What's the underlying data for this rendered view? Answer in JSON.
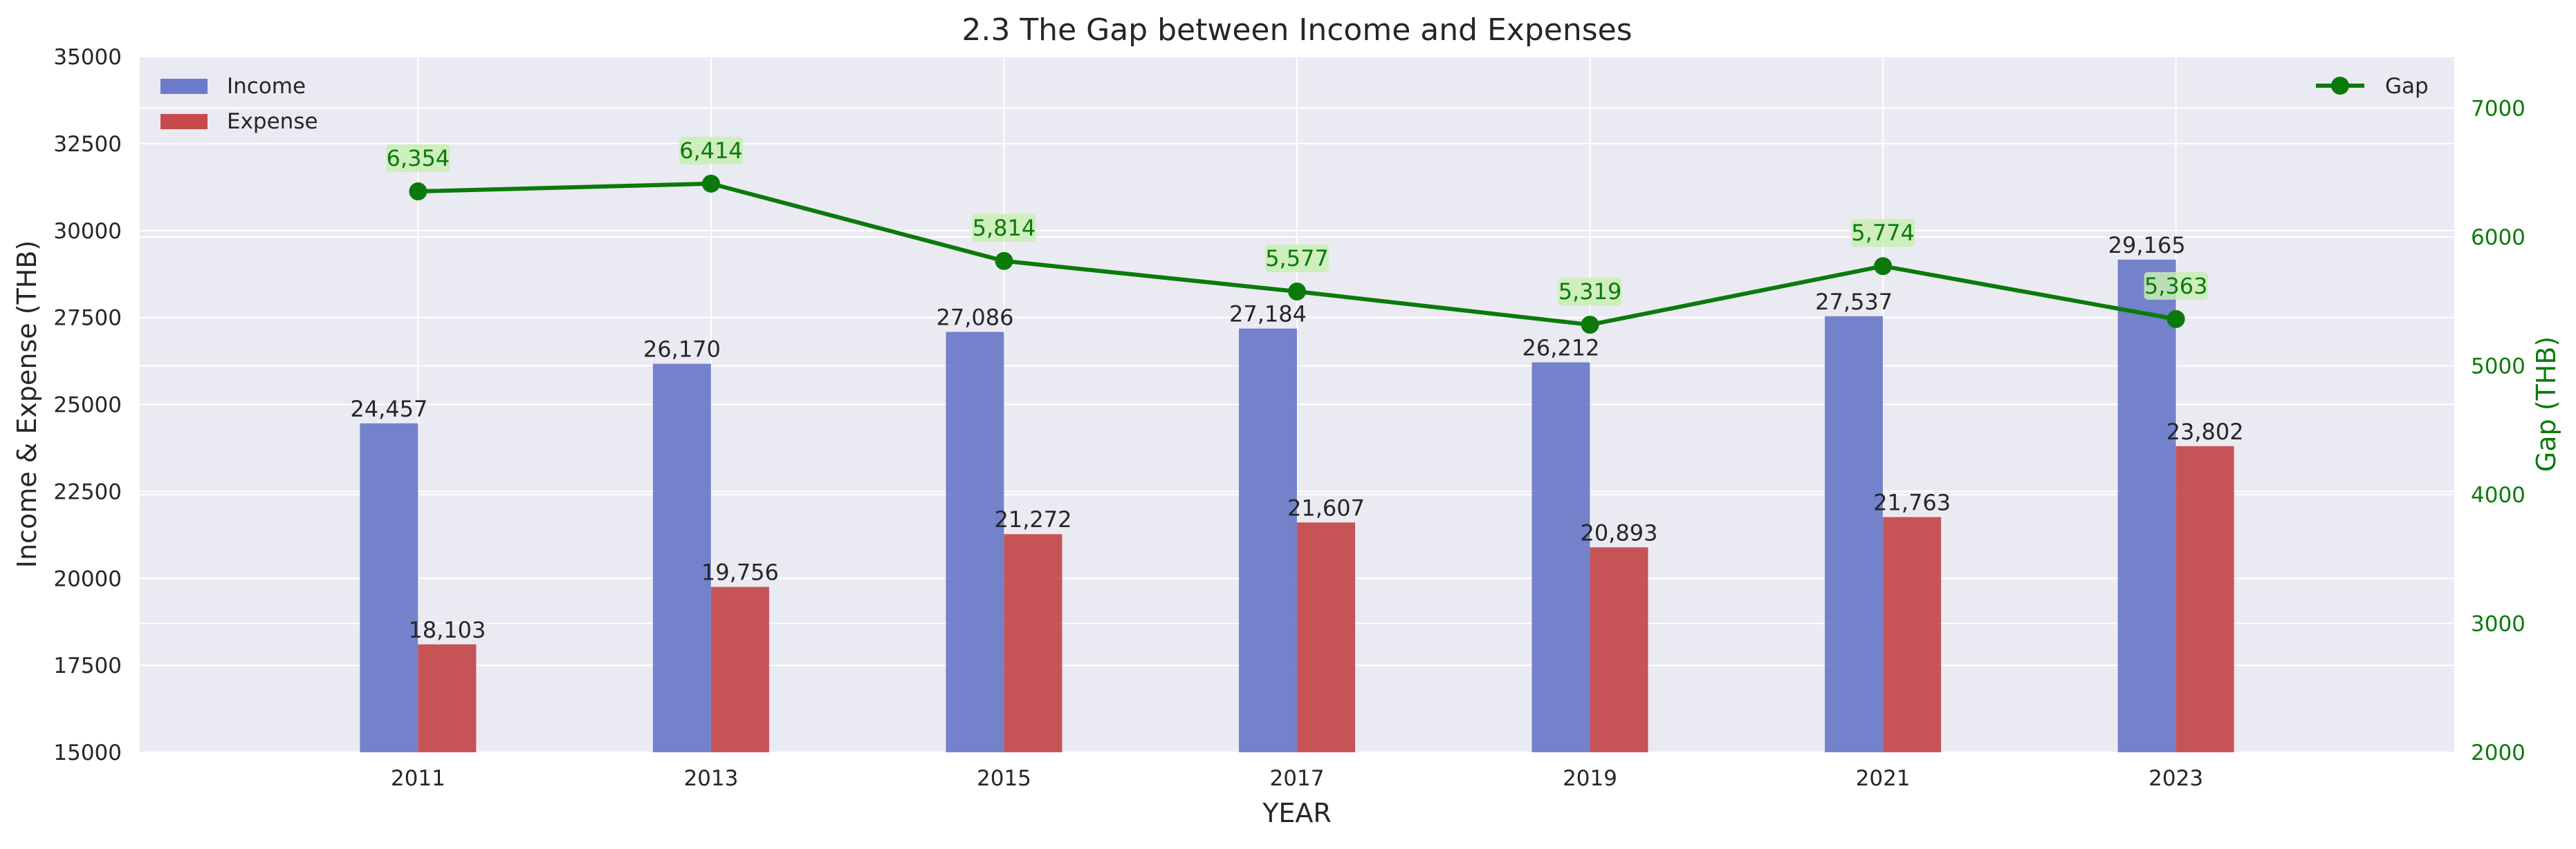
{
  "chart_data": {
    "type": "bar",
    "title": "2.3 The Gap between Income and Expenses",
    "xlabel": "YEAR",
    "ylabel": "Income & Expense (THB)",
    "y2label": "Gap (THB)",
    "categories": [
      "2011",
      "2013",
      "2015",
      "2017",
      "2019",
      "2021",
      "2023"
    ],
    "ylim": [
      15000,
      35000
    ],
    "yticks": [
      "15000",
      "17500",
      "20000",
      "22500",
      "25000",
      "27500",
      "30000",
      "32500",
      "35000"
    ],
    "y2lim": [
      2000,
      7400
    ],
    "y2ticks": [
      "2000",
      "3000",
      "4000",
      "5000",
      "6000",
      "7000"
    ],
    "grid": true,
    "series": [
      {
        "name": "Income",
        "type": "bar",
        "axis": "left",
        "color": "#5f6fc4",
        "values": [
          24457,
          26170,
          27086,
          27184,
          26212,
          27537,
          29165
        ],
        "labels": [
          "24,457",
          "26,170",
          "27,086",
          "27,184",
          "26,212",
          "27,537",
          "29,165"
        ]
      },
      {
        "name": "Expense",
        "type": "bar",
        "axis": "left",
        "color": "#c0393b",
        "values": [
          18103,
          19756,
          21272,
          21607,
          20893,
          21763,
          23802
        ],
        "labels": [
          "18,103",
          "19,756",
          "21,272",
          "21,607",
          "20,893",
          "21,763",
          "23,802"
        ]
      },
      {
        "name": "Gap",
        "type": "line",
        "axis": "right",
        "color": "#0b7a0b",
        "values": [
          6354,
          6414,
          5814,
          5577,
          5319,
          5774,
          5363
        ],
        "labels": [
          "6,354",
          "6,414",
          "5,814",
          "5,577",
          "5,319",
          "5,774",
          "5,363"
        ]
      }
    ],
    "legend_left": {
      "placement": "upper-left",
      "items": [
        "Income",
        "Expense"
      ]
    },
    "legend_right": {
      "placement": "upper-right",
      "items": [
        "Gap"
      ]
    },
    "colors": {
      "plot_background": "#eaeaf2",
      "grid": "#ffffff",
      "text": "#262626",
      "gap_axis": "#0b7a0b",
      "gap_label_box": "#c9eeb4"
    }
  }
}
